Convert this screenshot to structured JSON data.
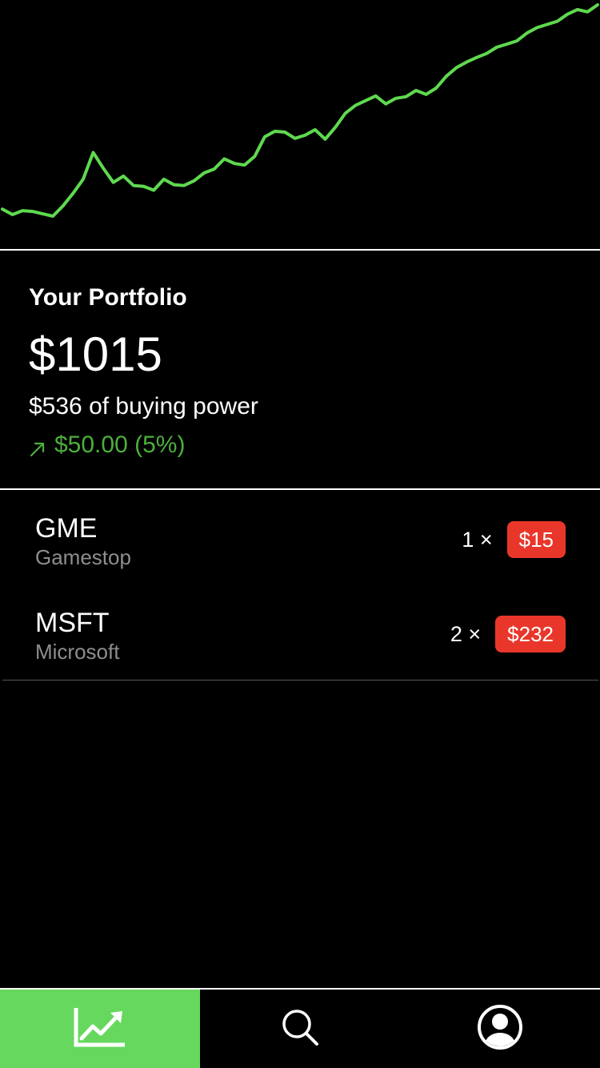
{
  "chart_data": {
    "type": "line",
    "title": "",
    "xlabel": "",
    "ylabel": "",
    "grid": false,
    "color": "#5fd94f",
    "x": [
      0,
      1,
      2,
      3,
      4,
      5,
      6,
      7,
      8,
      9,
      10,
      11,
      12,
      13,
      14,
      15,
      16,
      17,
      18,
      19,
      20,
      21,
      22,
      23,
      24,
      25,
      26,
      27,
      28,
      29,
      30,
      31,
      32,
      33,
      34,
      35,
      36,
      37,
      38,
      39,
      40,
      41,
      42,
      43,
      44,
      45,
      46,
      47,
      48,
      49,
      50,
      51,
      52,
      53,
      54,
      55,
      56,
      57,
      58,
      59
    ],
    "values": [
      58,
      51,
      56,
      55,
      52,
      49,
      62,
      78,
      96,
      130,
      110,
      92,
      100,
      88,
      87,
      82,
      96,
      89,
      88,
      94,
      104,
      109,
      122,
      116,
      114,
      125,
      150,
      157,
      156,
      148,
      152,
      159,
      147,
      162,
      180,
      190,
      196,
      202,
      192,
      199,
      201,
      209,
      204,
      212,
      227,
      238,
      245,
      251,
      256,
      264,
      268,
      272,
      282,
      289,
      293,
      297,
      306,
      312,
      309,
      318
    ]
  },
  "portfolio": {
    "title": "Your Portfolio",
    "value": "$1015",
    "buying_power": "$536 of buying power",
    "change": "$50.00 (5%)",
    "change_color": "#4caf3c"
  },
  "holdings": [
    {
      "ticker": "GME",
      "name": "Gamestop",
      "qty": "1 ×",
      "price": "$15"
    },
    {
      "ticker": "MSFT",
      "name": "Microsoft",
      "qty": "2 ×",
      "price": "$232"
    }
  ],
  "tabs": [
    {
      "icon": "trending-up-icon",
      "active": true
    },
    {
      "icon": "search-icon",
      "active": false
    },
    {
      "icon": "user-profile-icon",
      "active": false
    }
  ],
  "colors": {
    "accent_green": "#66d85e",
    "badge_red": "#e8372a",
    "secondary_text": "#8e8e8e"
  }
}
